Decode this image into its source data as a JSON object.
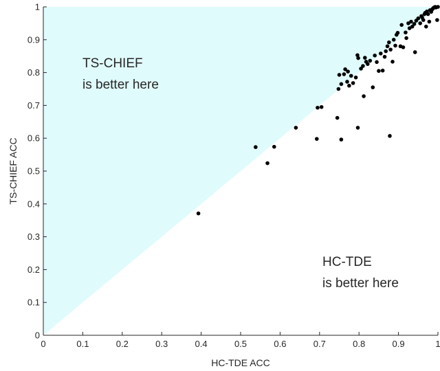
{
  "chart_data": {
    "type": "scatter",
    "title": "",
    "xlabel": "HC-TDE ACC",
    "ylabel": "TS-CHIEF ACC",
    "xlim": [
      0,
      1
    ],
    "ylim": [
      0,
      1
    ],
    "xticks": [
      "0",
      "0.1",
      "0.2",
      "0.3",
      "0.4",
      "0.5",
      "0.6",
      "0.7",
      "0.8",
      "0.9",
      "1"
    ],
    "yticks": [
      "0",
      "0.1",
      "0.2",
      "0.3",
      "0.4",
      "0.5",
      "0.6",
      "0.7",
      "0.8",
      "0.9",
      "1"
    ],
    "grid": false,
    "region_color": "#e0fbfb",
    "point_color": "#000000",
    "annotations": {
      "upper_line1": "TS-CHIEF",
      "upper_line2": "is better here",
      "lower_line1": "HC-TDE",
      "lower_line2": "is better here"
    },
    "points": [
      [
        0.393,
        0.371
      ],
      [
        0.538,
        0.573
      ],
      [
        0.568,
        0.524
      ],
      [
        0.585,
        0.574
      ],
      [
        0.64,
        0.632
      ],
      [
        0.693,
        0.598
      ],
      [
        0.695,
        0.693
      ],
      [
        0.705,
        0.695
      ],
      [
        0.745,
        0.662
      ],
      [
        0.755,
        0.596
      ],
      [
        0.797,
        0.632
      ],
      [
        0.878,
        0.607
      ],
      [
        0.748,
        0.75
      ],
      [
        0.75,
        0.793
      ],
      [
        0.755,
        0.765
      ],
      [
        0.762,
        0.795
      ],
      [
        0.765,
        0.81
      ],
      [
        0.77,
        0.772
      ],
      [
        0.772,
        0.803
      ],
      [
        0.775,
        0.76
      ],
      [
        0.78,
        0.79
      ],
      [
        0.785,
        0.768
      ],
      [
        0.792,
        0.785
      ],
      [
        0.796,
        0.853
      ],
      [
        0.798,
        0.844
      ],
      [
        0.805,
        0.812
      ],
      [
        0.81,
        0.82
      ],
      [
        0.812,
        0.728
      ],
      [
        0.815,
        0.845
      ],
      [
        0.818,
        0.833
      ],
      [
        0.822,
        0.826
      ],
      [
        0.828,
        0.836
      ],
      [
        0.835,
        0.755
      ],
      [
        0.84,
        0.852
      ],
      [
        0.845,
        0.832
      ],
      [
        0.85,
        0.805
      ],
      [
        0.855,
        0.858
      ],
      [
        0.86,
        0.806
      ],
      [
        0.865,
        0.848
      ],
      [
        0.868,
        0.865
      ],
      [
        0.872,
        0.88
      ],
      [
        0.876,
        0.892
      ],
      [
        0.88,
        0.87
      ],
      [
        0.885,
        0.833
      ],
      [
        0.888,
        0.9
      ],
      [
        0.892,
        0.882
      ],
      [
        0.895,
        0.915
      ],
      [
        0.898,
        0.921
      ],
      [
        0.905,
        0.88
      ],
      [
        0.908,
        0.945
      ],
      [
        0.912,
        0.877
      ],
      [
        0.918,
        0.922
      ],
      [
        0.92,
        0.905
      ],
      [
        0.925,
        0.95
      ],
      [
        0.928,
        0.935
      ],
      [
        0.932,
        0.955
      ],
      [
        0.935,
        0.94
      ],
      [
        0.94,
        0.948
      ],
      [
        0.942,
        0.862
      ],
      [
        0.945,
        0.958
      ],
      [
        0.95,
        0.965
      ],
      [
        0.955,
        0.95
      ],
      [
        0.958,
        0.972
      ],
      [
        0.96,
        0.968
      ],
      [
        0.963,
        0.96
      ],
      [
        0.966,
        0.978
      ],
      [
        0.968,
        0.982
      ],
      [
        0.97,
        0.94
      ],
      [
        0.972,
        0.986
      ],
      [
        0.975,
        0.978
      ],
      [
        0.978,
        0.955
      ],
      [
        0.98,
        0.99
      ],
      [
        0.983,
        0.985
      ],
      [
        0.986,
        0.993
      ],
      [
        0.988,
        0.996
      ],
      [
        0.99,
        0.998
      ],
      [
        0.993,
        1.0
      ],
      [
        0.995,
        0.998
      ],
      [
        0.998,
        0.96
      ],
      [
        1.0,
        1.0
      ]
    ]
  }
}
